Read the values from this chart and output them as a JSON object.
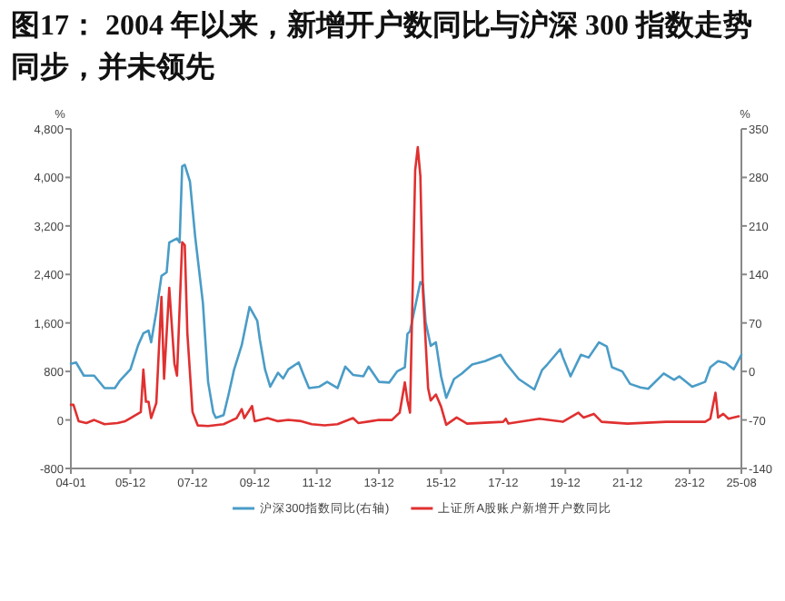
{
  "chart_data": {
    "type": "line",
    "title": "图17：  2004 年以来，新增开户数同比与沪深 300 指数走势同步，并未领先",
    "ylabel": "%",
    "y2label": "%",
    "xlim": [
      "2004-01",
      "2025-08"
    ],
    "xticks": [
      {
        "value": "2004-01",
        "label": "04-01"
      },
      {
        "value": "2005-12",
        "label": "05-12"
      },
      {
        "value": "2007-12",
        "label": "07-12"
      },
      {
        "value": "2009-12",
        "label": "09-12"
      },
      {
        "value": "2011-12",
        "label": "11-12"
      },
      {
        "value": "2013-12",
        "label": "13-12"
      },
      {
        "value": "2015-12",
        "label": "15-12"
      },
      {
        "value": "2017-12",
        "label": "17-12"
      },
      {
        "value": "2019-12",
        "label": "19-12"
      },
      {
        "value": "2021-12",
        "label": "21-12"
      },
      {
        "value": "2023-12",
        "label": "23-12"
      },
      {
        "value": "2025-08",
        "label": "25-08"
      }
    ],
    "ylim": [
      -800,
      4800
    ],
    "yticks": [
      -800,
      0,
      800,
      {
        "value": 1600,
        "label": "1,600"
      },
      {
        "value": 2400,
        "label": "2,400"
      },
      {
        "value": 3200,
        "label": "3,200"
      },
      {
        "value": 4000,
        "label": "4,000"
      },
      {
        "value": 4800,
        "label": "4,800"
      }
    ],
    "y2lim": [
      -140,
      350
    ],
    "y2ticks": [
      -140,
      -70,
      0,
      70,
      140,
      210,
      280,
      350
    ],
    "legend": "bottom",
    "grid": false,
    "marker": "none",
    "line_style": "solid",
    "series": [
      {
        "name": "沪深300指数同比(右轴)",
        "color": "#4a9cc7",
        "axis": "y2",
        "x": [
          "2004-01",
          "2004-03",
          "2004-06",
          "2004-10",
          "2005-02",
          "2005-06",
          "2005-08",
          "2005-12",
          "2006-03",
          "2006-05",
          "2006-07",
          "2006-08",
          "2006-10",
          "2006-12",
          "2007-02",
          "2007-03",
          "2007-06",
          "2007-07",
          "2007-08",
          "2007-09",
          "2007-11",
          "2008-01",
          "2008-04",
          "2008-06",
          "2008-08",
          "2008-09",
          "2008-12",
          "2009-02",
          "2009-04",
          "2009-07",
          "2009-10",
          "2010-01",
          "2010-02",
          "2010-04",
          "2010-06",
          "2010-09",
          "2010-11",
          "2011-01",
          "2011-05",
          "2011-07",
          "2011-09",
          "2012-01",
          "2012-04",
          "2012-08",
          "2012-11",
          "2013-02",
          "2013-06",
          "2013-08",
          "2013-12",
          "2014-04",
          "2014-07",
          "2014-10",
          "2014-11",
          "2014-12",
          "2015-01",
          "2015-04",
          "2015-05",
          "2015-06",
          "2015-08",
          "2015-10",
          "2015-12",
          "2016-02",
          "2016-05",
          "2016-08",
          "2016-12",
          "2017-05",
          "2017-11",
          "2018-01",
          "2018-06",
          "2018-12",
          "2019-03",
          "2019-05",
          "2019-10",
          "2019-11",
          "2020-02",
          "2020-06",
          "2020-09",
          "2021-01",
          "2021-04",
          "2021-06",
          "2021-10",
          "2022-01",
          "2022-05",
          "2022-08",
          "2023-02",
          "2023-06",
          "2023-08",
          "2024-01",
          "2024-06",
          "2024-08",
          "2024-11",
          "2025-02",
          "2025-05",
          "2025-08"
        ],
        "values": [
          11,
          13,
          -6,
          -6,
          -24,
          -24,
          -13,
          3,
          38,
          55,
          59,
          42,
          86,
          138,
          143,
          186,
          192,
          186,
          296,
          298,
          274,
          195,
          99,
          -15,
          -59,
          -67,
          -63,
          -32,
          2,
          38,
          93,
          73,
          46,
          3,
          -22,
          -2,
          -10,
          3,
          13,
          -6,
          -24,
          -22,
          -15,
          -24,
          7,
          -5,
          -7,
          7,
          -15,
          -16,
          0,
          6,
          54,
          58,
          76,
          129,
          126,
          72,
          37,
          42,
          -7,
          -38,
          -11,
          -3,
          10,
          15,
          24,
          12,
          -11,
          -26,
          2,
          10,
          32,
          21,
          -7,
          24,
          20,
          42,
          36,
          6,
          0,
          -18,
          -23,
          -25,
          -3,
          -12,
          -7,
          -22,
          -15,
          6,
          15,
          12,
          3,
          24
        ]
      },
      {
        "name": "上证所A股账户新增开户数同比",
        "color": "#e03030",
        "x": [
          "2004-01",
          "2004-02",
          "2004-04",
          "2004-07",
          "2004-10",
          "2005-02",
          "2005-07",
          "2005-10",
          "2005-12",
          "2006-04",
          "2006-05",
          "2006-06",
          "2006-07",
          "2006-08",
          "2006-10",
          "2006-12",
          "2007-01",
          "2007-03",
          "2007-05",
          "2007-06",
          "2007-08",
          "2007-09",
          "2007-10",
          "2007-12",
          "2008-02",
          "2008-06",
          "2008-12",
          "2009-05",
          "2009-07",
          "2009-08",
          "2009-11",
          "2009-12",
          "2010-05",
          "2010-09",
          "2011-01",
          "2011-06",
          "2011-10",
          "2012-03",
          "2012-08",
          "2013-02",
          "2013-04",
          "2013-09",
          "2013-12",
          "2014-05",
          "2014-08",
          "2014-10",
          "2014-11",
          "2014-12",
          "2015-02",
          "2015-03",
          "2015-04",
          "2015-05",
          "2015-07",
          "2015-08",
          "2015-10",
          "2015-12",
          "2016-02",
          "2016-06",
          "2016-10",
          "2017-12",
          "2018-01",
          "2018-02",
          "2019-02",
          "2019-11",
          "2020-05",
          "2020-07",
          "2020-11",
          "2021-02",
          "2021-12",
          "2023-03",
          "2024-06",
          "2024-08",
          "2024-10",
          "2024-11",
          "2025-01",
          "2025-03",
          "2025-07"
        ],
        "values": [
          250,
          250,
          -20,
          -50,
          0,
          -70,
          -50,
          -20,
          30,
          130,
          830,
          300,
          300,
          30,
          280,
          2030,
          680,
          2180,
          930,
          730,
          2930,
          2880,
          1430,
          130,
          -90,
          -100,
          -70,
          30,
          180,
          30,
          230,
          -20,
          30,
          -20,
          0,
          -20,
          -70,
          -90,
          -70,
          30,
          -50,
          -20,
          0,
          0,
          120,
          620,
          320,
          120,
          4120,
          4500,
          4020,
          2120,
          520,
          320,
          420,
          220,
          -80,
          40,
          -60,
          -30,
          20,
          -60,
          20,
          -30,
          120,
          40,
          100,
          -30,
          -60,
          -30,
          -30,
          20,
          450,
          40,
          100,
          20,
          60
        ]
      }
    ]
  }
}
